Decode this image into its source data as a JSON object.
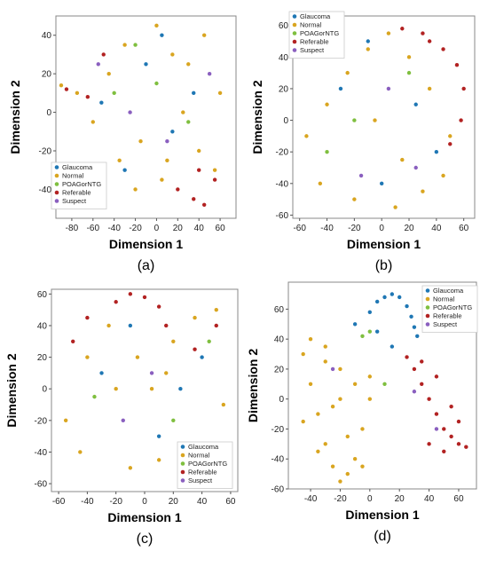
{
  "colors": {
    "Glaucoma": "#1f77b4",
    "Normal": "#d9a520",
    "POAGorNTG": "#7fbf3f",
    "Referable": "#b22222",
    "Suspect": "#8a5fbf"
  },
  "chart_data": [
    {
      "type": "scatter",
      "panel": "(a)",
      "xlabel": "Dimension 1",
      "ylabel": "Dimension 2",
      "xlim": [
        -95,
        75
      ],
      "ylim": [
        -55,
        50
      ],
      "xticks": [
        -80,
        -60,
        -40,
        -20,
        0,
        20,
        40,
        60
      ],
      "yticks": [
        -40,
        -20,
        0,
        20,
        40
      ],
      "legend_position": "bottom-left",
      "legend": [
        "Glaucoma",
        "Normal",
        "POAGorNTG",
        "Referable",
        "Suspect"
      ],
      "series": [
        {
          "name": "Glaucoma",
          "x": [
            -52,
            -10,
            15,
            35,
            -30,
            5
          ],
          "y": [
            5,
            25,
            -10,
            10,
            -30,
            40
          ]
        },
        {
          "name": "Normal",
          "x": [
            -90,
            -75,
            -60,
            -45,
            -30,
            -15,
            0,
            15,
            30,
            45,
            60,
            -20,
            10,
            40,
            55,
            -35,
            25,
            5
          ],
          "y": [
            14,
            10,
            -5,
            20,
            35,
            -15,
            45,
            30,
            25,
            40,
            10,
            -40,
            -25,
            -20,
            -30,
            -25,
            0,
            -35
          ]
        },
        {
          "name": "POAGorNTG",
          "x": [
            -40,
            0,
            30,
            -20
          ],
          "y": [
            10,
            15,
            -5,
            35
          ]
        },
        {
          "name": "Referable",
          "x": [
            -85,
            -65,
            -50,
            20,
            35,
            45,
            55,
            40
          ],
          "y": [
            12,
            8,
            30,
            -40,
            -45,
            -48,
            -35,
            -30
          ]
        },
        {
          "name": "Suspect",
          "x": [
            -25,
            10,
            50,
            -55
          ],
          "y": [
            0,
            -15,
            20,
            25
          ]
        }
      ]
    },
    {
      "type": "scatter",
      "panel": "(b)",
      "xlabel": "Dimension 1",
      "ylabel": "Dimension 2",
      "xlim": [
        -65,
        68
      ],
      "ylim": [
        -62,
        66
      ],
      "xticks": [
        -60,
        -40,
        -20,
        0,
        20,
        40,
        60
      ],
      "yticks": [
        -60,
        -40,
        -20,
        0,
        20,
        40,
        60
      ],
      "legend_position": "top-left",
      "legend": [
        "Glaucoma",
        "Normal",
        "POAGorNTG",
        "Referable",
        "Suspect"
      ],
      "series": [
        {
          "name": "Glaucoma",
          "x": [
            -30,
            0,
            25,
            -10,
            40
          ],
          "y": [
            20,
            -40,
            10,
            50,
            -20
          ]
        },
        {
          "name": "Normal",
          "x": [
            -55,
            -40,
            -25,
            -10,
            5,
            20,
            35,
            50,
            -45,
            -20,
            10,
            30,
            -5,
            15,
            -35,
            45
          ],
          "y": [
            -10,
            10,
            30,
            45,
            55,
            40,
            20,
            -10,
            -40,
            -50,
            -55,
            -45,
            0,
            -25,
            45,
            -35
          ]
        },
        {
          "name": "POAGorNTG",
          "x": [
            -20,
            20,
            -40
          ],
          "y": [
            0,
            30,
            -20
          ]
        },
        {
          "name": "Referable",
          "x": [
            15,
            30,
            45,
            55,
            60,
            58,
            50,
            35
          ],
          "y": [
            58,
            55,
            45,
            35,
            20,
            0,
            -15,
            50
          ]
        },
        {
          "name": "Suspect",
          "x": [
            -15,
            25,
            5
          ],
          "y": [
            -35,
            -30,
            20
          ]
        }
      ]
    },
    {
      "type": "scatter",
      "panel": "(c)",
      "xlabel": "Dimension 1",
      "ylabel": "Dimension 2",
      "xlim": [
        -65,
        65
      ],
      "ylim": [
        -65,
        63
      ],
      "xticks": [
        -60,
        -40,
        -20,
        0,
        20,
        40,
        60
      ],
      "yticks": [
        -60,
        -40,
        -20,
        0,
        20,
        40,
        60
      ],
      "legend_position": "bottom-right",
      "legend": [
        "Glaucoma",
        "Normal",
        "POAGorNTG",
        "Referable",
        "Suspect"
      ],
      "series": [
        {
          "name": "Glaucoma",
          "x": [
            -30,
            10,
            40,
            -10,
            25
          ],
          "y": [
            10,
            -30,
            20,
            40,
            0
          ]
        },
        {
          "name": "Normal",
          "x": [
            -55,
            -40,
            -25,
            -10,
            5,
            20,
            35,
            50,
            -45,
            -20,
            10,
            30,
            55,
            -5,
            15
          ],
          "y": [
            -20,
            20,
            40,
            -50,
            0,
            30,
            45,
            50,
            -40,
            0,
            -45,
            -35,
            -10,
            20,
            10
          ]
        },
        {
          "name": "POAGorNTG",
          "x": [
            -35,
            20,
            45
          ],
          "y": [
            -5,
            -20,
            30
          ]
        },
        {
          "name": "Referable",
          "x": [
            -20,
            -10,
            0,
            10,
            15,
            -40,
            -50,
            35,
            50
          ],
          "y": [
            55,
            60,
            58,
            52,
            40,
            45,
            30,
            25,
            40
          ]
        },
        {
          "name": "Suspect",
          "x": [
            -15,
            5,
            30
          ],
          "y": [
            -20,
            10,
            -50
          ]
        }
      ]
    },
    {
      "type": "scatter",
      "panel": "(d)",
      "xlabel": "Dimension 1",
      "ylabel": "Dimension 2",
      "xlim": [
        -55,
        72
      ],
      "ylim": [
        -60,
        78
      ],
      "xticks": [
        -40,
        -20,
        0,
        20,
        40,
        60
      ],
      "yticks": [
        -60,
        -40,
        -20,
        0,
        20,
        40,
        60
      ],
      "legend_position": "top-right",
      "legend": [
        "Glaucoma",
        "Normal",
        "POAGorNTG",
        "Referable",
        "Suspect"
      ],
      "series": [
        {
          "name": "Glaucoma",
          "x": [
            -10,
            0,
            5,
            10,
            15,
            20,
            25,
            28,
            30,
            32,
            15,
            5
          ],
          "y": [
            50,
            58,
            65,
            68,
            70,
            68,
            62,
            55,
            48,
            42,
            35,
            45
          ]
        },
        {
          "name": "Normal",
          "x": [
            -45,
            -40,
            -35,
            -30,
            -25,
            -20,
            -15,
            -10,
            -5,
            0,
            -40,
            -30,
            -20,
            -10,
            0,
            -45,
            -35,
            -25,
            -15,
            -5,
            -20,
            -30
          ],
          "y": [
            30,
            10,
            -10,
            -30,
            -45,
            -55,
            -50,
            -40,
            -20,
            0,
            40,
            35,
            20,
            10,
            15,
            -15,
            -35,
            -5,
            -25,
            -45,
            0,
            25
          ]
        },
        {
          "name": "POAGorNTG",
          "x": [
            -5,
            0,
            10
          ],
          "y": [
            42,
            45,
            10
          ]
        },
        {
          "name": "Referable",
          "x": [
            25,
            30,
            35,
            40,
            45,
            50,
            55,
            60,
            65,
            35,
            45,
            55,
            40,
            50,
            60
          ],
          "y": [
            28,
            20,
            10,
            0,
            -10,
            -20,
            -25,
            -30,
            -32,
            25,
            15,
            -5,
            -30,
            -35,
            -15
          ]
        },
        {
          "name": "Suspect",
          "x": [
            30,
            45,
            -25
          ],
          "y": [
            5,
            -20,
            20
          ]
        }
      ]
    }
  ]
}
